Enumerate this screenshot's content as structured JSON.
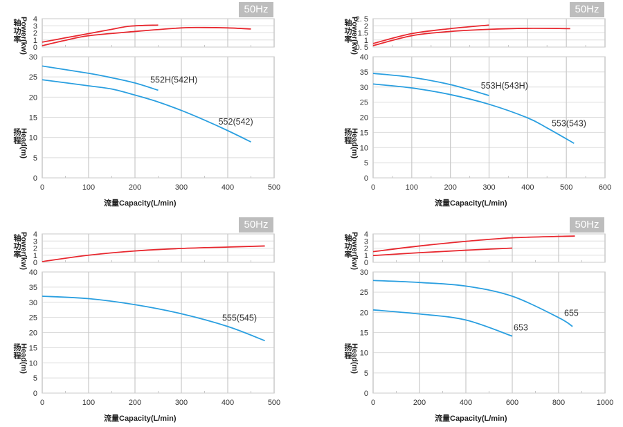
{
  "axis_labels": {
    "power_cn": "轴功率",
    "power_en": "Power(kw)",
    "head_cn": "扬程",
    "head_en": "Head(m)",
    "x": "流量Capacity(L/min)"
  },
  "colors": {
    "power": "#e8282f",
    "head": "#2a9fe0",
    "grid": "#dcdcdc",
    "major_grid": "#c8c8c8",
    "badge": "#bdbdbd"
  },
  "chart_data": [
    {
      "type": "line",
      "badge": "50Hz",
      "xlim": [
        0,
        500
      ],
      "xticks": [
        0,
        100,
        200,
        300,
        400,
        500
      ],
      "power": {
        "ylim": [
          0,
          4
        ],
        "yticks": [
          "0",
          "1",
          "2",
          "3",
          "4"
        ],
        "tickvals": [
          0,
          1,
          2,
          3,
          4
        ],
        "series": [
          {
            "name": "552H(542H)",
            "points": [
              [
                0,
                0.7
              ],
              [
                50,
                1.3
              ],
              [
                100,
                1.9
              ],
              [
                150,
                2.5
              ],
              [
                190,
                2.95
              ],
              [
                250,
                3.1
              ]
            ]
          },
          {
            "name": "552(542)",
            "points": [
              [
                0,
                0.2
              ],
              [
                50,
                0.95
              ],
              [
                100,
                1.6
              ],
              [
                200,
                2.2
              ],
              [
                300,
                2.7
              ],
              [
                350,
                2.75
              ],
              [
                400,
                2.7
              ],
              [
                450,
                2.55
              ]
            ]
          }
        ]
      },
      "head": {
        "ylim": [
          0,
          30
        ],
        "yticks": [
          "0",
          "5",
          "10",
          "15",
          "20",
          "25",
          "30"
        ],
        "tickvals": [
          0,
          5,
          10,
          15,
          20,
          25,
          30
        ],
        "series": [
          {
            "name": "552H(542H)",
            "label_at": [
              233,
              24.3
            ],
            "points": [
              [
                0,
                27.7
              ],
              [
                100,
                25.9
              ],
              [
                150,
                24.8
              ],
              [
                200,
                23.5
              ],
              [
                250,
                21.7
              ]
            ]
          },
          {
            "name": "552(542)",
            "label_at": [
              380,
              13.9
            ],
            "points": [
              [
                0,
                24.3
              ],
              [
                100,
                22.8
              ],
              [
                150,
                22
              ],
              [
                200,
                20.5
              ],
              [
                250,
                18.8
              ],
              [
                300,
                16.7
              ],
              [
                350,
                14.3
              ],
              [
                400,
                11.7
              ],
              [
                450,
                8.9
              ]
            ]
          }
        ]
      }
    },
    {
      "type": "line",
      "badge": "50Hz",
      "xlim": [
        0,
        600
      ],
      "xticks": [
        0,
        100,
        200,
        300,
        400,
        500,
        600
      ],
      "power": {
        "ylim": [
          0.5,
          2.5
        ],
        "yticks": [
          "0. 5",
          "1",
          "1.5",
          "2",
          "2. 5"
        ],
        "tickvals": [
          0.5,
          1,
          1.5,
          2,
          2.5
        ],
        "series": [
          {
            "name": "553H(543H)",
            "points": [
              [
                0,
                0.75
              ],
              [
                100,
                1.45
              ],
              [
                200,
                1.8
              ],
              [
                300,
                2.05
              ]
            ]
          },
          {
            "name": "553(543)",
            "points": [
              [
                0,
                0.6
              ],
              [
                100,
                1.3
              ],
              [
                200,
                1.6
              ],
              [
                300,
                1.75
              ],
              [
                400,
                1.82
              ],
              [
                510,
                1.8
              ]
            ]
          }
        ]
      },
      "head": {
        "ylim": [
          0,
          40
        ],
        "yticks": [
          "0",
          "5",
          "10",
          "15",
          "20",
          "25",
          "30",
          "35",
          "40"
        ],
        "tickvals": [
          0,
          5,
          10,
          15,
          20,
          25,
          30,
          35,
          40
        ],
        "series": [
          {
            "name": "553H(543H)",
            "label_at": [
              279,
              30.4
            ],
            "points": [
              [
                0,
                34.5
              ],
              [
                100,
                33.2
              ],
              [
                200,
                30.8
              ],
              [
                300,
                27.2
              ]
            ]
          },
          {
            "name": "553(543)",
            "label_at": [
              462,
              17.9
            ],
            "points": [
              [
                0,
                31
              ],
              [
                100,
                29.7
              ],
              [
                200,
                27.5
              ],
              [
                300,
                24.3
              ],
              [
                400,
                19.8
              ],
              [
                450,
                16.5
              ],
              [
                520,
                11.4
              ]
            ]
          }
        ]
      }
    },
    {
      "type": "line",
      "badge": "50Hz",
      "xlim": [
        0,
        500
      ],
      "xticks": [
        0,
        100,
        200,
        300,
        400,
        500
      ],
      "power": {
        "ylim": [
          0,
          4
        ],
        "yticks": [
          "0",
          "1",
          "2",
          "3",
          "4"
        ],
        "tickvals": [
          0,
          1,
          2,
          3,
          4
        ],
        "series": [
          {
            "name": "555(545)",
            "points": [
              [
                0,
                0.1
              ],
              [
                100,
                1.0
              ],
              [
                200,
                1.6
              ],
              [
                300,
                1.95
              ],
              [
                400,
                2.15
              ],
              [
                480,
                2.3
              ]
            ]
          }
        ]
      },
      "head": {
        "ylim": [
          0,
          40
        ],
        "yticks": [
          "0",
          "5",
          "10",
          "15",
          "20",
          "25",
          "30",
          "35",
          "40"
        ],
        "tickvals": [
          0,
          5,
          10,
          15,
          20,
          25,
          30,
          35,
          40
        ],
        "series": [
          {
            "name": "555(545)",
            "label_at": [
              388,
              24.8
            ],
            "points": [
              [
                0,
                32
              ],
              [
                100,
                31.2
              ],
              [
                200,
                29.2
              ],
              [
                300,
                26.2
              ],
              [
                400,
                22
              ],
              [
                480,
                17.3
              ]
            ]
          }
        ]
      }
    },
    {
      "type": "line",
      "badge": "50Hz",
      "xlim": [
        0,
        1000
      ],
      "xticks": [
        0,
        200,
        400,
        600,
        800,
        1000
      ],
      "power": {
        "ylim": [
          0,
          4
        ],
        "yticks": [
          "0",
          "1",
          "2",
          "3",
          "4"
        ],
        "tickvals": [
          0,
          1,
          2,
          3,
          4
        ],
        "series": [
          {
            "name": "655",
            "points": [
              [
                0,
                1.5
              ],
              [
                200,
                2.3
              ],
              [
                400,
                2.95
              ],
              [
                600,
                3.45
              ],
              [
                870,
                3.7
              ]
            ]
          },
          {
            "name": "653",
            "points": [
              [
                0,
                0.95
              ],
              [
                200,
                1.35
              ],
              [
                400,
                1.7
              ],
              [
                600,
                2.0
              ]
            ]
          }
        ]
      },
      "head": {
        "ylim": [
          0,
          30
        ],
        "yticks": [
          "0",
          "5",
          "10",
          "15",
          "20",
          "25",
          "30"
        ],
        "tickvals": [
          0,
          5,
          10,
          15,
          20,
          25,
          30
        ],
        "series": [
          {
            "name": "655",
            "label_at": [
              824,
              19.8
            ],
            "points": [
              [
                0,
                27.9
              ],
              [
                200,
                27.4
              ],
              [
                400,
                26.5
              ],
              [
                600,
                24
              ],
              [
                800,
                18.7
              ],
              [
                860,
                16.5
              ]
            ]
          },
          {
            "name": "653",
            "label_at": [
              606,
              16.2
            ],
            "points": [
              [
                0,
                20.6
              ],
              [
                200,
                19.6
              ],
              [
                400,
                18.1
              ],
              [
                600,
                14.1
              ]
            ]
          }
        ]
      }
    }
  ]
}
